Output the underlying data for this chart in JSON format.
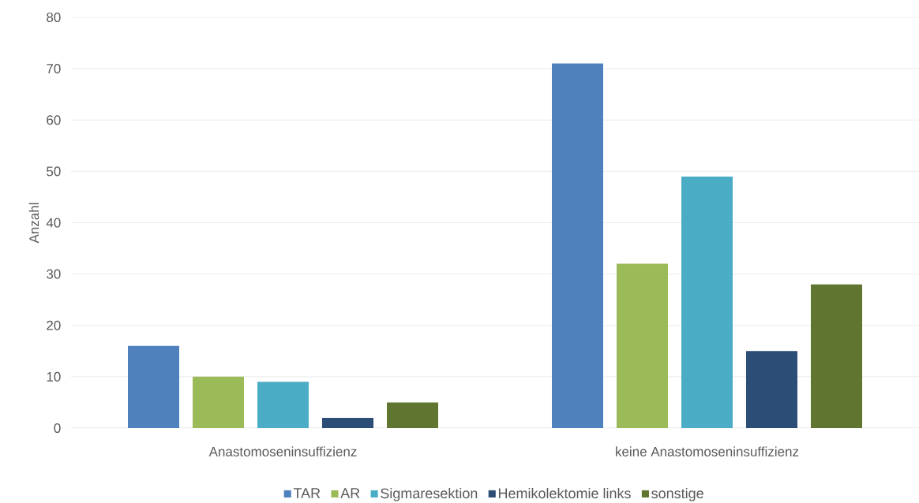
{
  "chart_data": {
    "type": "bar",
    "ylabel": "Anzahl",
    "categories": [
      "Anastomoseninsuffizienz",
      "keine Anastomoseninsuffizienz"
    ],
    "series": [
      {
        "name": "TAR",
        "color": "#4f81bd",
        "values": [
          16,
          71
        ]
      },
      {
        "name": "AR",
        "color": "#9bbb59",
        "values": [
          10,
          32
        ]
      },
      {
        "name": "Sigmaresektion",
        "color": "#4bacc6",
        "values": [
          9,
          49
        ]
      },
      {
        "name": "Hemikolektomie links",
        "color": "#2c4d75",
        "values": [
          2,
          15
        ]
      },
      {
        "name": "sonstige",
        "color": "#5f7530",
        "values": [
          5,
          28
        ]
      }
    ],
    "ylim": [
      0,
      80
    ],
    "yticks": [
      0,
      10,
      20,
      30,
      40,
      50,
      60,
      70,
      80
    ],
    "grid": "y",
    "legend": "bottom"
  }
}
